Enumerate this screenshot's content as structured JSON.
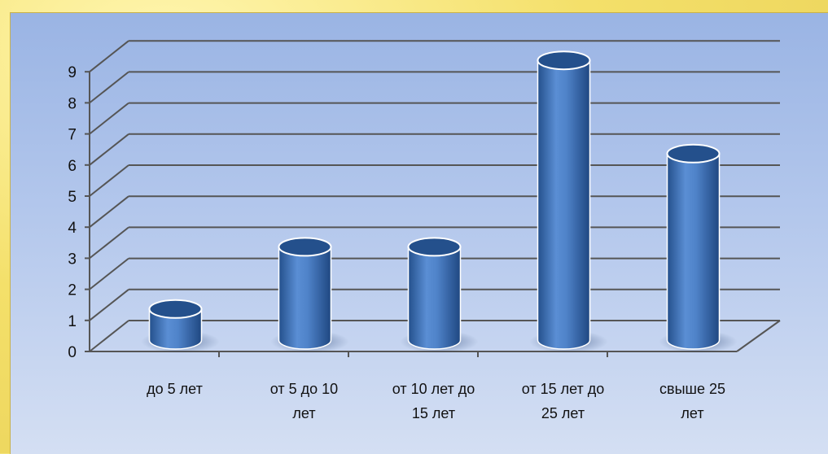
{
  "chart_data": {
    "type": "bar",
    "style": "3d-cylinder",
    "categories": [
      [
        "до 5 лет"
      ],
      [
        "от 5 до 10",
        "лет"
      ],
      [
        "от 10 лет до",
        "15 лет"
      ],
      [
        "от 15 лет до",
        "25 лет"
      ],
      [
        "свыше 25",
        "лет"
      ]
    ],
    "values": [
      1,
      3,
      3,
      9,
      6
    ],
    "ylim": [
      0,
      9
    ],
    "yticks": [
      "0",
      "1",
      "2",
      "3",
      "4",
      "5",
      "6",
      "7",
      "8",
      "9"
    ],
    "grid": true,
    "legend": "none",
    "colors": {
      "bar": "#3d72b8",
      "bar_dark": "#24508c",
      "bar_light": "#6f9fdc",
      "grid": "#555555"
    }
  }
}
